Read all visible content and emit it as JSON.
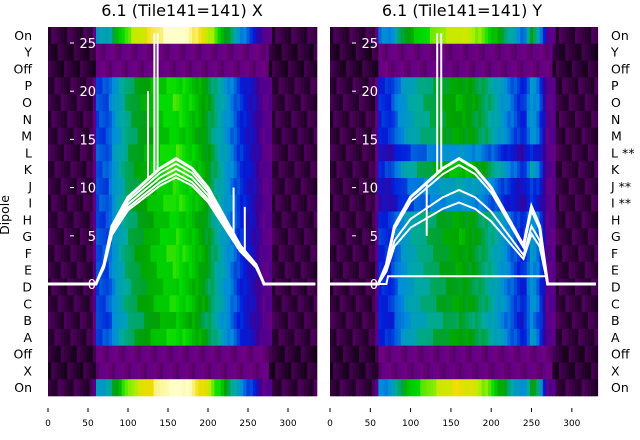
{
  "chart_data": [
    {
      "type": "heatmap",
      "title": "6.1 (Tile141=141) X",
      "ylabel": "Dipole",
      "row_labels": [
        "On",
        "Y",
        "Off",
        "P",
        "O",
        "N",
        "M",
        "L",
        "K",
        "J",
        "I",
        "H",
        "G",
        "F",
        "E",
        "D",
        "C",
        "B",
        "A",
        "Off",
        "X",
        "On"
      ],
      "row_labels_full": [
        "On",
        "Y",
        "Off",
        "P",
        "O",
        "N",
        "M",
        "L",
        "K",
        "J",
        "I",
        "H",
        "G",
        "F",
        "E",
        "D",
        "C",
        "B",
        "A",
        "Off",
        "X",
        "On"
      ],
      "row_intensity": [
        0.95,
        0.05,
        0.03,
        0.6,
        0.62,
        0.6,
        0.58,
        0.62,
        0.63,
        0.6,
        0.62,
        0.58,
        0.6,
        0.62,
        0.6,
        0.58,
        0.6,
        0.55,
        0.6,
        0.03,
        0.05,
        0.95
      ],
      "xlim": [
        0,
        335
      ],
      "xticks": [
        "0",
        "50",
        "100",
        "150",
        "200",
        "250",
        "300"
      ],
      "ylim": [
        0,
        25
      ],
      "yticks": [
        "0",
        "5",
        "10",
        "15",
        "20",
        "25"
      ],
      "line_x": [
        0,
        60,
        70,
        80,
        100,
        120,
        140,
        160,
        180,
        200,
        220,
        240,
        250,
        260,
        270,
        280,
        335
      ],
      "line_y": [
        0,
        0,
        2,
        6,
        9,
        10.5,
        12,
        13,
        12,
        10,
        7,
        4,
        3,
        2,
        0,
        0,
        0
      ],
      "line_scales": [
        1,
        0.96,
        0.92,
        0.88,
        0.85
      ],
      "spikes": [
        {
          "x": 125,
          "y": 20
        },
        {
          "x": 133,
          "y": 26
        },
        {
          "x": 137,
          "y": 26
        },
        {
          "x": 232,
          "y": 10
        },
        {
          "x": 246,
          "y": 8
        }
      ]
    },
    {
      "type": "heatmap",
      "title": "6.1 (Tile141=141) Y",
      "row_labels": [
        "On",
        "Y",
        "Off",
        "P",
        "O",
        "N",
        "M",
        "L **",
        "K",
        "J **",
        "I **",
        "H",
        "G",
        "F",
        "E",
        "D",
        "C",
        "B",
        "A",
        "Off",
        "X",
        "On"
      ],
      "row_intensity": [
        0.75,
        0.05,
        0.03,
        0.5,
        0.52,
        0.5,
        0.5,
        0.3,
        0.55,
        0.35,
        0.3,
        0.5,
        0.52,
        0.5,
        0.5,
        0.48,
        0.5,
        0.45,
        0.5,
        0.03,
        0.05,
        0.8
      ],
      "xlim": [
        0,
        330
      ],
      "xticks": [
        "0",
        "50",
        "100",
        "150",
        "200",
        "250",
        "300"
      ],
      "ylim": [
        0,
        25
      ],
      "yticks": [
        "0",
        "5",
        "10",
        "15",
        "20",
        "25"
      ],
      "line_x": [
        0,
        60,
        70,
        80,
        100,
        120,
        140,
        160,
        180,
        200,
        220,
        240,
        250,
        260,
        270,
        280,
        330
      ],
      "line_y": [
        0,
        0,
        2,
        6,
        9,
        10.5,
        12,
        13,
        12,
        10,
        7,
        4,
        8,
        6,
        0,
        0,
        0
      ],
      "line_scales": [
        1,
        0.95,
        0.75,
        0.65,
        0.08
      ],
      "spikes": [
        {
          "x": 133,
          "y": 26
        },
        {
          "x": 138,
          "y": 26
        },
        {
          "x": 120,
          "y": 5
        }
      ]
    }
  ]
}
